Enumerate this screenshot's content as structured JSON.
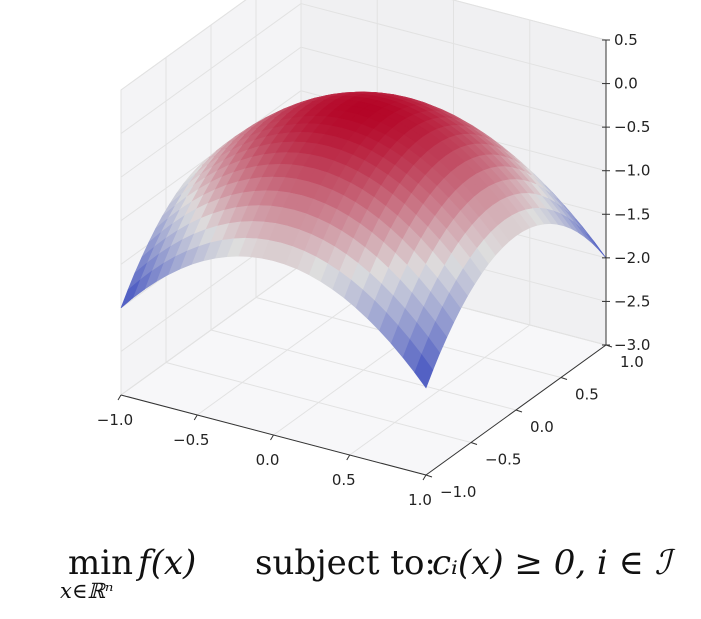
{
  "chart_data": {
    "type": "surface",
    "title": "",
    "xlabel": "",
    "ylabel": "",
    "zlabel": "",
    "x_ticks": [
      "−1.0",
      "−0.5",
      "0.0",
      "0.5",
      "1.0"
    ],
    "y_ticks": [
      "−1.0",
      "−0.5",
      "0.0",
      "0.5",
      "1.0"
    ],
    "z_ticks": [
      "0.5",
      "0.0",
      "−0.5",
      "−1.0",
      "−1.5",
      "−2.0",
      "−2.5",
      "−3.0"
    ],
    "xlim": [
      -1.0,
      1.0
    ],
    "ylim": [
      -1.0,
      1.0
    ],
    "zlim": [
      -3.0,
      0.5
    ],
    "grid": true,
    "colormap": "coolwarm",
    "colors": {
      "high": "#b40426",
      "mid": "#dddddd",
      "low": "#3b4cc0"
    },
    "surface_points": [
      {
        "x": -1.0,
        "y": -1.0,
        "z": -2.0
      },
      {
        "x": -1.0,
        "y": 0.0,
        "z": -1.0
      },
      {
        "x": -1.0,
        "y": 1.0,
        "z": -2.0
      },
      {
        "x": 0.0,
        "y": -1.0,
        "z": -1.0
      },
      {
        "x": 0.0,
        "y": 0.0,
        "z": 0.0
      },
      {
        "x": 0.0,
        "y": 1.0,
        "z": -1.0
      },
      {
        "x": 1.0,
        "y": -1.0,
        "z": -2.0
      },
      {
        "x": 1.0,
        "y": 0.0,
        "z": -1.0
      },
      {
        "x": 1.0,
        "y": 1.0,
        "z": -2.0
      }
    ]
  },
  "formula": {
    "min": "min",
    "min_subscript": "x∈ℝⁿ",
    "objective": "f(x)",
    "subject_to": "subject to:",
    "constraint": "cᵢ(x) ≥ 0,  i ∈ ℐ"
  }
}
